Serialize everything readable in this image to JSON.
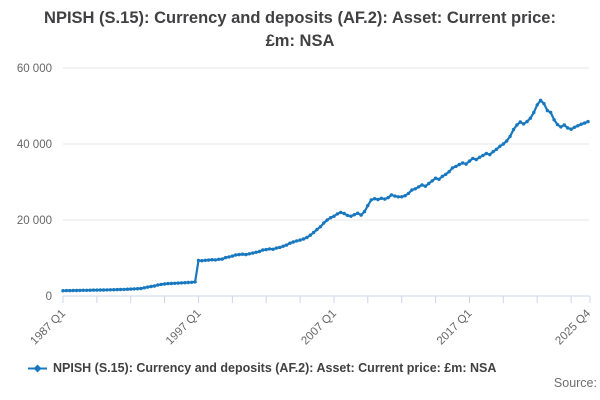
{
  "title": "NPISH (S.15): Currency and deposits (AF.2): Asset: Current price: £m: NSA",
  "legend": {
    "label": "NPISH (S.15): Currency and deposits (AF.2): Asset: Current price: £m: NSA",
    "marker_icon": "line-with-diamond-marker"
  },
  "source_label": "Source:",
  "colors": {
    "line": "#1878bf",
    "grid": "#e6e6e6",
    "axis": "#ccd6eb",
    "tick_label": "#666666",
    "title_text": "#414042",
    "source_text": "#6d6e71"
  },
  "chart_data": {
    "type": "line",
    "title": "NPISH (S.15): Currency and deposits (AF.2): Asset: Current price: £m: NSA",
    "unit": "£m",
    "frequency": "quarterly",
    "x_start": "1987 Q1",
    "x_end": "2025 Q4",
    "ylim": [
      0,
      60000
    ],
    "grid": "horizontal-only",
    "legend_position": "bottom-left",
    "y_ticks": [
      {
        "label": "0",
        "value": 0
      },
      {
        "label": "20 000",
        "value": 20000
      },
      {
        "label": "40 000",
        "value": 40000
      },
      {
        "label": "60 000",
        "value": 60000
      }
    ],
    "x_tick_labels": [
      {
        "label": "1987 Q1",
        "index": 0
      },
      {
        "label": "1997 Q1",
        "index": 40
      },
      {
        "label": "2007 Q1",
        "index": 80
      },
      {
        "label": "2017 Q1",
        "index": 120
      },
      {
        "label": "2025 Q4",
        "index": 155
      }
    ],
    "minor_tick_every": 10,
    "values": [
      1400,
      1410,
      1430,
      1440,
      1460,
      1470,
      1490,
      1500,
      1520,
      1540,
      1550,
      1570,
      1590,
      1610,
      1630,
      1650,
      1680,
      1710,
      1740,
      1780,
      1820,
      1870,
      1920,
      1980,
      2150,
      2350,
      2500,
      2620,
      2900,
      3050,
      3150,
      3250,
      3300,
      3350,
      3400,
      3450,
      3500,
      3550,
      3600,
      3700,
      9350,
      9300,
      9400,
      9450,
      9550,
      9500,
      9650,
      9700,
      10100,
      10300,
      10500,
      10800,
      10900,
      11000,
      10900,
      11100,
      11300,
      11500,
      11700,
      12100,
      12200,
      12400,
      12300,
      12600,
      12800,
      13100,
      13400,
      13900,
      14200,
      14500,
      14700,
      15000,
      15400,
      16000,
      16700,
      17500,
      18200,
      19200,
      20000,
      20600,
      21000,
      21600,
      22000,
      21700,
      21200,
      21000,
      21400,
      21800,
      21300,
      22200,
      23800,
      25300,
      25600,
      25400,
      25700,
      25500,
      25900,
      26600,
      26300,
      26100,
      26100,
      26400,
      27000,
      27900,
      28200,
      28700,
      29200,
      28900,
      29600,
      30300,
      31000,
      30700,
      31500,
      32000,
      32700,
      33700,
      34100,
      34600,
      35000,
      34700,
      35500,
      36200,
      35900,
      36500,
      37000,
      37500,
      37200,
      38000,
      38600,
      39400,
      40000,
      40800,
      42000,
      43800,
      45000,
      45800,
      45300,
      45900,
      46800,
      48300,
      50300,
      51500,
      50600,
      48800,
      48300,
      46400,
      45100,
      44500,
      45000,
      44200,
      43900,
      44400,
      44800,
      45200,
      45500,
      45900
    ]
  }
}
